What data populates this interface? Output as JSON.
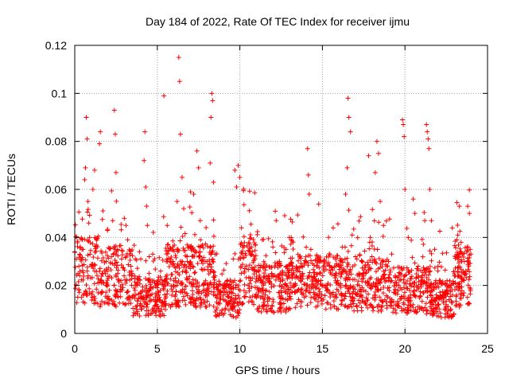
{
  "chart_data": {
    "type": "scatter",
    "title": "Day 184 of 2022, Rate Of TEC Index for receiver ijmu",
    "xlabel": "GPS time / hours",
    "ylabel": "ROTI / TECUs",
    "xlim": [
      0,
      25
    ],
    "ylim": [
      0,
      0.12
    ],
    "xticks": [
      0,
      5,
      10,
      15,
      20,
      25
    ],
    "yticks": [
      0,
      0.02,
      0.04,
      0.06,
      0.08,
      0.1,
      0.12
    ],
    "xtick_labels": [
      "0",
      "5",
      "10",
      "15",
      "20",
      "25"
    ],
    "ytick_labels": [
      "0",
      "0.02",
      "0.04",
      "0.06",
      "0.08",
      "0.1",
      "0.12"
    ],
    "grid": true,
    "marker": "plus",
    "color": "#ff0000",
    "series": [
      {
        "points": [
          [
            0.0,
            0.034
          ],
          [
            0.1,
            0.031
          ],
          [
            0.2,
            0.025
          ],
          [
            0.3,
            0.033
          ],
          [
            0.4,
            0.015
          ],
          [
            0.5,
            0.035
          ],
          [
            0.6,
            0.064
          ],
          [
            0.65,
            0.069
          ],
          [
            0.7,
            0.09
          ],
          [
            0.75,
            0.081
          ],
          [
            0.8,
            0.055
          ],
          [
            0.85,
            0.046
          ],
          [
            0.9,
            0.04
          ],
          [
            1.0,
            0.028
          ],
          [
            1.1,
            0.06
          ],
          [
            1.2,
            0.068
          ],
          [
            1.3,
            0.036
          ],
          [
            1.4,
            0.021
          ],
          [
            1.5,
            0.079
          ],
          [
            1.55,
            0.084
          ],
          [
            1.7,
            0.025
          ],
          [
            1.9,
            0.03
          ],
          [
            2.1,
            0.018
          ],
          [
            2.3,
            0.047
          ],
          [
            2.4,
            0.093
          ],
          [
            2.45,
            0.083
          ],
          [
            2.5,
            0.067
          ],
          [
            2.6,
            0.035
          ],
          [
            2.8,
            0.022
          ],
          [
            3.0,
            0.048
          ],
          [
            3.1,
            0.045
          ],
          [
            3.2,
            0.039
          ],
          [
            3.4,
            0.028
          ],
          [
            3.6,
            0.016
          ],
          [
            3.8,
            0.02
          ],
          [
            4.0,
            0.031
          ],
          [
            4.2,
            0.072
          ],
          [
            4.25,
            0.084
          ],
          [
            4.3,
            0.061
          ],
          [
            4.35,
            0.053
          ],
          [
            4.4,
            0.045
          ],
          [
            4.5,
            0.025
          ],
          [
            4.7,
            0.01
          ],
          [
            5.0,
            0.014
          ],
          [
            5.2,
            0.026
          ],
          [
            5.4,
            0.099
          ],
          [
            5.6,
            0.045
          ],
          [
            5.8,
            0.03
          ],
          [
            6.0,
            0.022
          ],
          [
            6.2,
            0.055
          ],
          [
            6.3,
            0.115
          ],
          [
            6.35,
            0.105
          ],
          [
            6.4,
            0.083
          ],
          [
            6.5,
            0.065
          ],
          [
            6.6,
            0.052
          ],
          [
            6.8,
            0.032
          ],
          [
            7.0,
            0.027
          ],
          [
            7.2,
            0.058
          ],
          [
            7.4,
            0.076
          ],
          [
            7.5,
            0.069
          ],
          [
            7.6,
            0.047
          ],
          [
            7.8,
            0.02
          ],
          [
            8.0,
            0.03
          ],
          [
            8.2,
            0.071
          ],
          [
            8.25,
            0.09
          ],
          [
            8.3,
            0.1
          ],
          [
            8.35,
            0.097
          ],
          [
            8.4,
            0.063
          ],
          [
            8.5,
            0.033
          ],
          [
            8.7,
            0.018
          ],
          [
            9.0,
            0.016
          ],
          [
            9.3,
            0.012
          ],
          [
            9.6,
            0.031
          ],
          [
            9.7,
            0.068
          ],
          [
            9.8,
            0.061
          ],
          [
            9.9,
            0.07
          ],
          [
            10.0,
            0.065
          ],
          [
            10.1,
            0.044
          ],
          [
            10.3,
            0.027
          ],
          [
            10.5,
            0.02
          ],
          [
            10.7,
            0.036
          ],
          [
            10.9,
            0.031
          ],
          [
            11.0,
            0.015
          ],
          [
            11.3,
            0.022
          ],
          [
            11.6,
            0.018
          ],
          [
            12.0,
            0.036
          ],
          [
            12.2,
            0.047
          ],
          [
            12.4,
            0.03
          ],
          [
            12.6,
            0.022
          ],
          [
            12.8,
            0.035
          ],
          [
            13.0,
            0.04
          ],
          [
            13.2,
            0.028
          ],
          [
            13.5,
            0.018
          ],
          [
            13.8,
            0.025
          ],
          [
            14.0,
            0.03
          ],
          [
            14.1,
            0.077
          ],
          [
            14.15,
            0.066
          ],
          [
            14.2,
            0.058
          ],
          [
            14.3,
            0.035
          ],
          [
            14.6,
            0.022
          ],
          [
            14.9,
            0.03
          ],
          [
            15.2,
            0.019
          ],
          [
            15.5,
            0.012
          ],
          [
            15.8,
            0.025
          ],
          [
            16.0,
            0.02
          ],
          [
            16.2,
            0.036
          ],
          [
            16.4,
            0.058
          ],
          [
            16.5,
            0.069
          ],
          [
            16.55,
            0.098
          ],
          [
            16.6,
            0.09
          ],
          [
            16.7,
            0.084
          ],
          [
            16.8,
            0.041
          ],
          [
            17.0,
            0.032
          ],
          [
            17.2,
            0.025
          ],
          [
            17.5,
            0.018
          ],
          [
            17.8,
            0.074
          ],
          [
            17.9,
            0.04
          ],
          [
            18.0,
            0.032
          ],
          [
            18.2,
            0.067
          ],
          [
            18.3,
            0.08
          ],
          [
            18.4,
            0.075
          ],
          [
            18.5,
            0.055
          ],
          [
            18.7,
            0.045
          ],
          [
            19.0,
            0.03
          ],
          [
            19.2,
            0.022
          ],
          [
            19.5,
            0.02
          ],
          [
            19.7,
            0.025
          ],
          [
            19.85,
            0.089
          ],
          [
            19.9,
            0.087
          ],
          [
            19.95,
            0.082
          ],
          [
            20.0,
            0.06
          ],
          [
            20.2,
            0.04
          ],
          [
            20.5,
            0.056
          ],
          [
            20.6,
            0.05
          ],
          [
            20.8,
            0.028
          ],
          [
            21.0,
            0.022
          ],
          [
            21.2,
            0.047
          ],
          [
            21.3,
            0.087
          ],
          [
            21.35,
            0.084
          ],
          [
            21.4,
            0.081
          ],
          [
            21.45,
            0.077
          ],
          [
            21.5,
            0.06
          ],
          [
            21.6,
            0.047
          ],
          [
            21.8,
            0.035
          ],
          [
            22.0,
            0.028
          ],
          [
            22.2,
            0.015
          ],
          [
            22.5,
            0.012
          ],
          [
            22.8,
            0.02
          ],
          [
            23.0,
            0.024
          ],
          [
            23.2,
            0.041
          ],
          [
            23.3,
            0.053
          ],
          [
            23.4,
            0.038
          ],
          [
            23.6,
            0.03
          ],
          [
            23.8,
            0.053
          ],
          [
            23.9,
            0.05
          ],
          [
            23.95,
            0.035
          ]
        ]
      }
    ],
    "generated_noise": {
      "description_hidden": true
    }
  }
}
